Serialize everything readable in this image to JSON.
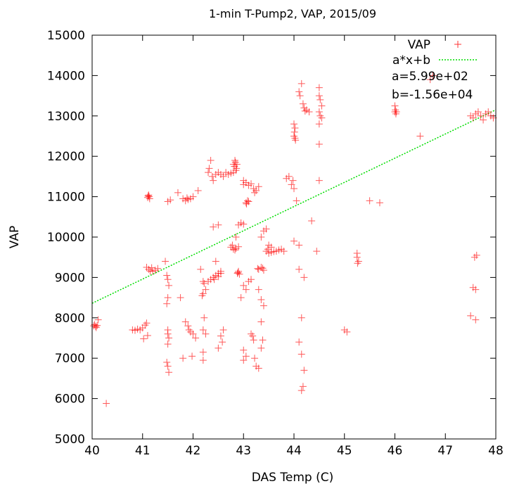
{
  "chart_data": {
    "type": "scatter",
    "title": "1-min T-Pump2, VAP, 2015/09",
    "xlabel": "DAS Temp (C)",
    "ylabel": "VAP",
    "xlim": [
      40,
      48
    ],
    "ylim": [
      5000,
      15000
    ],
    "x_ticks": [
      "40",
      "41",
      "42",
      "43",
      "44",
      "45",
      "46",
      "47",
      "48"
    ],
    "y_ticks": [
      "5000",
      "6000",
      "7000",
      "8000",
      "9000",
      "10000",
      "11000",
      "12000",
      "13000",
      "14000",
      "15000"
    ],
    "grid": false,
    "legend_position": "top-right",
    "annotations": [
      "a=5.99e+02",
      "b=-1.56e+04"
    ],
    "colors": {
      "points": "#ff0000",
      "fit": "#00dd00"
    },
    "series": [
      {
        "name": "VAP",
        "marker": "plus",
        "points": [
          [
            40.03,
            7800
          ],
          [
            40.05,
            7830
          ],
          [
            40.07,
            7790
          ],
          [
            40.1,
            7810
          ],
          [
            40.08,
            7760
          ],
          [
            40.12,
            7950
          ],
          [
            40.28,
            5880
          ],
          [
            40.8,
            7700
          ],
          [
            40.85,
            7690
          ],
          [
            40.9,
            7720
          ],
          [
            40.95,
            7700
          ],
          [
            41.0,
            7750
          ],
          [
            41.05,
            7820
          ],
          [
            41.08,
            7870
          ],
          [
            41.1,
            7560
          ],
          [
            41.02,
            7480
          ],
          [
            41.1,
            10980
          ],
          [
            41.12,
            11040
          ],
          [
            41.14,
            10950
          ],
          [
            41.13,
            11000
          ],
          [
            41.11,
            11020
          ],
          [
            41.08,
            9250
          ],
          [
            41.12,
            9200
          ],
          [
            41.15,
            9160
          ],
          [
            41.2,
            9150
          ],
          [
            41.25,
            9180
          ],
          [
            41.3,
            9220
          ],
          [
            41.18,
            9240
          ],
          [
            41.45,
            9400
          ],
          [
            41.48,
            9050
          ],
          [
            41.5,
            8950
          ],
          [
            41.52,
            8800
          ],
          [
            41.5,
            8500
          ],
          [
            41.48,
            8350
          ],
          [
            41.5,
            7700
          ],
          [
            41.5,
            7600
          ],
          [
            41.52,
            7500
          ],
          [
            41.5,
            7350
          ],
          [
            41.48,
            6900
          ],
          [
            41.5,
            6800
          ],
          [
            41.52,
            6650
          ],
          [
            41.5,
            10880
          ],
          [
            41.55,
            10920
          ],
          [
            41.7,
            11100
          ],
          [
            41.8,
            10950
          ],
          [
            41.85,
            10900
          ],
          [
            41.9,
            10930
          ],
          [
            41.95,
            10950
          ],
          [
            42.0,
            11000
          ],
          [
            42.1,
            11150
          ],
          [
            41.88,
            10970
          ],
          [
            41.75,
            8500
          ],
          [
            41.85,
            7900
          ],
          [
            41.9,
            7800
          ],
          [
            41.92,
            7700
          ],
          [
            41.95,
            7650
          ],
          [
            42.0,
            7600
          ],
          [
            41.98,
            7050
          ],
          [
            41.8,
            7000
          ],
          [
            42.05,
            7500
          ],
          [
            42.15,
            9200
          ],
          [
            42.2,
            8900
          ],
          [
            42.22,
            8850
          ],
          [
            42.25,
            8700
          ],
          [
            42.2,
            8600
          ],
          [
            42.18,
            8550
          ],
          [
            42.22,
            8000
          ],
          [
            42.2,
            7700
          ],
          [
            42.25,
            7600
          ],
          [
            42.2,
            7150
          ],
          [
            42.2,
            6950
          ],
          [
            42.3,
            8900
          ],
          [
            42.35,
            8950
          ],
          [
            42.4,
            9000
          ],
          [
            42.45,
            9050
          ],
          [
            42.5,
            9020
          ],
          [
            42.55,
            9100
          ],
          [
            42.42,
            8950
          ],
          [
            42.3,
            11600
          ],
          [
            42.32,
            11700
          ],
          [
            42.35,
            11900
          ],
          [
            42.38,
            11500
          ],
          [
            42.4,
            11400
          ],
          [
            42.45,
            11550
          ],
          [
            42.5,
            11600
          ],
          [
            42.55,
            11550
          ],
          [
            42.6,
            11500
          ],
          [
            42.65,
            11600
          ],
          [
            42.7,
            11550
          ],
          [
            42.75,
            11580
          ],
          [
            42.8,
            11800
          ],
          [
            42.82,
            11750
          ],
          [
            42.84,
            11850
          ],
          [
            42.86,
            11700
          ],
          [
            42.83,
            11900
          ],
          [
            42.85,
            11650
          ],
          [
            42.8,
            11600
          ],
          [
            42.87,
            11800
          ],
          [
            42.4,
            10250
          ],
          [
            42.5,
            10300
          ],
          [
            42.45,
            9400
          ],
          [
            42.5,
            9100
          ],
          [
            42.55,
            9150
          ],
          [
            42.6,
            7700
          ],
          [
            42.55,
            7550
          ],
          [
            42.58,
            7400
          ],
          [
            42.5,
            7250
          ],
          [
            42.75,
            9750
          ],
          [
            42.8,
            9700
          ],
          [
            42.85,
            9720
          ],
          [
            42.9,
            9760
          ],
          [
            42.78,
            9800
          ],
          [
            42.83,
            9680
          ],
          [
            42.88,
            9100
          ],
          [
            42.9,
            9150
          ],
          [
            42.92,
            9080
          ],
          [
            42.89,
            9120
          ],
          [
            42.85,
            10000
          ],
          [
            42.9,
            10300
          ],
          [
            42.95,
            10350
          ],
          [
            43.0,
            10320
          ],
          [
            43.0,
            11300
          ],
          [
            43.05,
            11350
          ],
          [
            43.1,
            11280
          ],
          [
            43.15,
            11320
          ],
          [
            43.0,
            11400
          ],
          [
            43.05,
            10850
          ],
          [
            43.08,
            10900
          ],
          [
            43.1,
            10880
          ],
          [
            43.06,
            10820
          ],
          [
            43.2,
            11200
          ],
          [
            43.25,
            11150
          ],
          [
            43.3,
            11250
          ],
          [
            43.22,
            11100
          ],
          [
            42.95,
            8500
          ],
          [
            43.0,
            8800
          ],
          [
            43.05,
            8700
          ],
          [
            43.1,
            8900
          ],
          [
            43.15,
            8950
          ],
          [
            43.0,
            7200
          ],
          [
            43.05,
            7050
          ],
          [
            43.0,
            6950
          ],
          [
            43.15,
            7600
          ],
          [
            43.2,
            7450
          ],
          [
            43.18,
            7550
          ],
          [
            43.22,
            7000
          ],
          [
            43.25,
            6800
          ],
          [
            43.3,
            9200
          ],
          [
            43.35,
            9250
          ],
          [
            43.38,
            9230
          ],
          [
            43.4,
            9180
          ],
          [
            43.28,
            9220
          ],
          [
            43.3,
            8700
          ],
          [
            43.35,
            8450
          ],
          [
            43.4,
            8300
          ],
          [
            43.35,
            7900
          ],
          [
            43.38,
            7450
          ],
          [
            43.35,
            7250
          ],
          [
            43.3,
            6750
          ],
          [
            43.35,
            10000
          ],
          [
            43.4,
            10150
          ],
          [
            43.45,
            10200
          ],
          [
            43.5,
            9800
          ],
          [
            43.55,
            9750
          ],
          [
            43.45,
            9650
          ],
          [
            43.5,
            9600
          ],
          [
            43.55,
            9620
          ],
          [
            43.6,
            9640
          ],
          [
            43.65,
            9650
          ],
          [
            43.7,
            9680
          ],
          [
            43.75,
            9700
          ],
          [
            43.8,
            9650
          ],
          [
            43.48,
            9700
          ],
          [
            43.85,
            11450
          ],
          [
            43.9,
            11500
          ],
          [
            43.95,
            11300
          ],
          [
            44.0,
            11200
          ],
          [
            44.05,
            10900
          ],
          [
            43.98,
            11400
          ],
          [
            44.0,
            12500
          ],
          [
            44.02,
            12450
          ],
          [
            44.01,
            12600
          ],
          [
            44.0,
            12800
          ],
          [
            44.03,
            12400
          ],
          [
            44.02,
            12700
          ],
          [
            44.1,
            13600
          ],
          [
            44.15,
            13800
          ],
          [
            44.12,
            13500
          ],
          [
            44.18,
            13300
          ],
          [
            44.2,
            13200
          ],
          [
            44.25,
            13150
          ],
          [
            44.3,
            13100
          ],
          [
            44.22,
            13120
          ],
          [
            44.5,
            13700
          ],
          [
            44.5,
            13500
          ],
          [
            44.52,
            13400
          ],
          [
            44.55,
            13250
          ],
          [
            44.5,
            13100
          ],
          [
            44.52,
            13000
          ],
          [
            44.55,
            12950
          ],
          [
            44.5,
            12800
          ],
          [
            44.5,
            12300
          ],
          [
            44.0,
            9900
          ],
          [
            44.1,
            9800
          ],
          [
            44.1,
            9200
          ],
          [
            44.2,
            9000
          ],
          [
            44.15,
            8000
          ],
          [
            44.1,
            7400
          ],
          [
            44.15,
            7100
          ],
          [
            44.2,
            6700
          ],
          [
            44.18,
            6300
          ],
          [
            44.15,
            6200
          ],
          [
            44.35,
            10400
          ],
          [
            44.5,
            11400
          ],
          [
            44.45,
            9650
          ],
          [
            45.0,
            7700
          ],
          [
            45.05,
            7650
          ],
          [
            45.25,
            9600
          ],
          [
            45.25,
            9500
          ],
          [
            45.28,
            9400
          ],
          [
            45.26,
            9350
          ],
          [
            45.5,
            10900
          ],
          [
            45.7,
            10850
          ],
          [
            46.0,
            13100
          ],
          [
            46.02,
            13050
          ],
          [
            46.01,
            13150
          ],
          [
            46.0,
            13250
          ],
          [
            46.03,
            13100
          ],
          [
            46.5,
            12500
          ],
          [
            46.7,
            13900
          ],
          [
            46.75,
            14000
          ],
          [
            47.5,
            13000
          ],
          [
            47.55,
            12950
          ],
          [
            47.6,
            13050
          ],
          [
            47.65,
            13100
          ],
          [
            47.7,
            13000
          ],
          [
            47.75,
            12900
          ],
          [
            47.8,
            13050
          ],
          [
            47.85,
            13100
          ],
          [
            47.9,
            13000
          ],
          [
            47.95,
            12950
          ],
          [
            47.5,
            8050
          ],
          [
            47.55,
            8750
          ],
          [
            47.6,
            8700
          ],
          [
            47.62,
            9550
          ],
          [
            47.58,
            9500
          ],
          [
            47.6,
            7950
          ]
        ]
      },
      {
        "name": "a*x+b",
        "style": "dotted-line",
        "slope": 599,
        "intercept": -15600
      }
    ]
  }
}
